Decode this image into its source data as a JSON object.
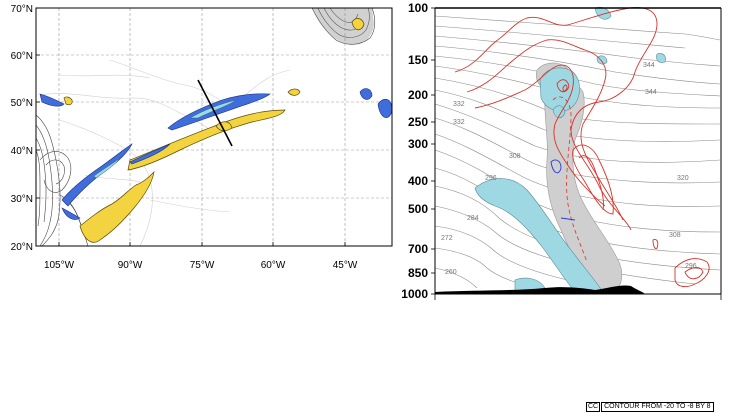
{
  "map": {
    "lat_labels": [
      "70°N",
      "60°N",
      "50°N",
      "40°N",
      "30°N",
      "20°N"
    ],
    "lon_labels": [
      "105°W",
      "90°W",
      "75°W",
      "60°W",
      "45°W"
    ]
  },
  "section": {
    "pressure_labels": [
      "100",
      "150",
      "200",
      "250",
      "300",
      "400",
      "500",
      "700",
      "850",
      "1000"
    ],
    "isentrope_labels": [
      "344",
      "332",
      "344",
      "332",
      "308",
      "320",
      "296",
      "284",
      "308",
      "272",
      "296",
      "260"
    ]
  },
  "footer": {
    "prefix": "CC",
    "contour_text": "CONTOUR FROM -20 TO -8 BY 8"
  },
  "colors": {
    "jet_blue": "#3f6ddb",
    "cyan_fill": "#9ed9e3",
    "yellow_fill": "#f3d33f",
    "red_contour": "#d9322b",
    "gray_fill": "#cfcfcf"
  }
}
